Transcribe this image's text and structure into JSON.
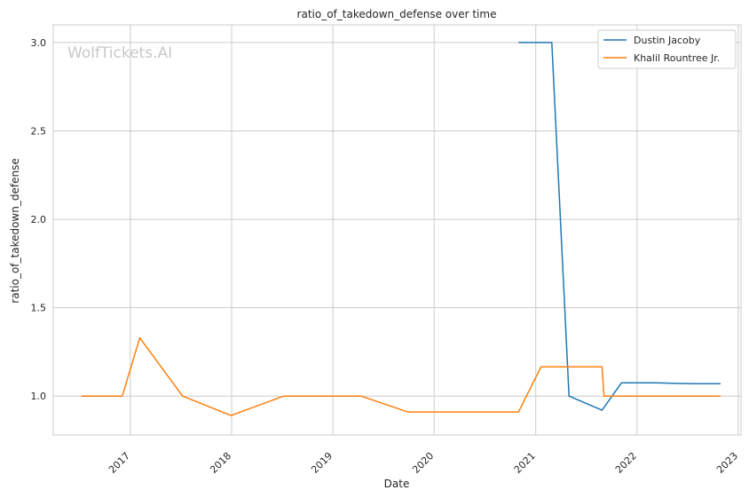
{
  "chart_data": {
    "type": "line",
    "title": "ratio_of_takedown_defense over time",
    "xlabel": "Date",
    "ylabel": "ratio_of_takedown_defense",
    "watermark": "WolfTickets.AI",
    "x_range": [
      "2016-03-29",
      "2023-01-11"
    ],
    "ylim": [
      0.78,
      3.1
    ],
    "x_ticks": [
      {
        "date": "2017-01-01",
        "label": "2017"
      },
      {
        "date": "2018-01-01",
        "label": "2018"
      },
      {
        "date": "2019-01-01",
        "label": "2019"
      },
      {
        "date": "2020-01-01",
        "label": "2020"
      },
      {
        "date": "2021-01-01",
        "label": "2021"
      },
      {
        "date": "2022-01-01",
        "label": "2022"
      },
      {
        "date": "2023-01-01",
        "label": "2023"
      }
    ],
    "y_ticks": [
      {
        "value": 1.0,
        "label": "1.0"
      },
      {
        "value": 1.5,
        "label": "1.5"
      },
      {
        "value": 2.0,
        "label": "2.0"
      },
      {
        "value": 2.5,
        "label": "2.5"
      },
      {
        "value": 3.0,
        "label": "3.0"
      }
    ],
    "grid": true,
    "legend_position": "top-right",
    "series": [
      {
        "name": "Dustin Jacoby",
        "color": "#1f77b4",
        "points": [
          {
            "x": "2020-10-31",
            "y": 3.0
          },
          {
            "x": "2021-02-28",
            "y": 3.0
          },
          {
            "x": "2021-05-01",
            "y": 1.0
          },
          {
            "x": "2021-08-28",
            "y": 0.92
          },
          {
            "x": "2021-11-06",
            "y": 1.075
          },
          {
            "x": "2022-03-10",
            "y": 1.075
          },
          {
            "x": "2022-07-30",
            "y": 1.07
          },
          {
            "x": "2022-10-29",
            "y": 1.07
          }
        ]
      },
      {
        "name": "Khalil Rountree Jr.",
        "color": "#ff7f0e",
        "points": [
          {
            "x": "2016-07-08",
            "y": 1.0
          },
          {
            "x": "2016-12-03",
            "y": 1.0
          },
          {
            "x": "2017-02-04",
            "y": 1.33
          },
          {
            "x": "2017-07-08",
            "y": 1.0
          },
          {
            "x": "2017-12-30",
            "y": 0.89
          },
          {
            "x": "2018-07-07",
            "y": 1.0
          },
          {
            "x": "2019-04-13",
            "y": 1.0
          },
          {
            "x": "2019-09-28",
            "y": 0.91
          },
          {
            "x": "2020-10-31",
            "y": 0.91
          },
          {
            "x": "2021-01-20",
            "y": 1.165
          },
          {
            "x": "2021-08-28",
            "y": 1.165
          },
          {
            "x": "2021-09-04",
            "y": 1.0
          },
          {
            "x": "2022-10-29",
            "y": 1.0
          }
        ]
      }
    ]
  }
}
